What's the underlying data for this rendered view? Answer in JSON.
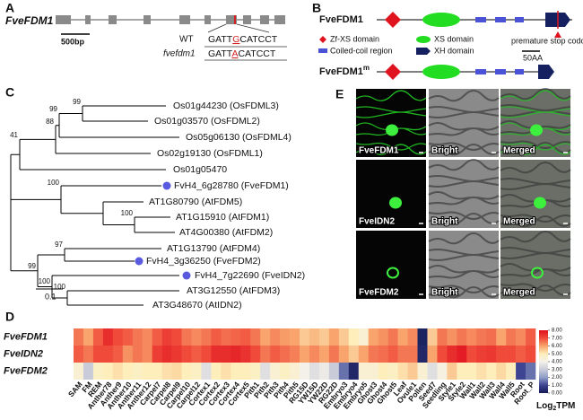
{
  "panel_labels": [
    "A",
    "B",
    "C",
    "D",
    "E"
  ],
  "gene_structure": {
    "gene": "FveFDM1",
    "scale": "500bp",
    "wt": {
      "label": "WT",
      "seq": [
        "GATT",
        "G",
        "CATCCT"
      ]
    },
    "mutant": {
      "label": "fvefdm1",
      "seq": [
        "GATT",
        "A",
        "CATCCT"
      ]
    }
  },
  "protein": {
    "wt": "FveFDM1",
    "mutant": {
      "name": "FveFDM1",
      "sup": "m"
    },
    "legend": [
      "Zf-XS domain",
      "XS domain",
      "Coiled-coil region",
      "XH domain"
    ],
    "stop": "premature stop codon",
    "scale": "50AA"
  },
  "tree": {
    "leaves": [
      "Os01g44230 (OsFDML3)",
      "Os01g03570 (OsFDML2)",
      "Os05g06130 (OsFDML4)",
      "Os02g19130 (OsFDML1)",
      "Os01g05470",
      "FvH4_6g28780 (FveFDM1)",
      "AT1G80790 (AtFDM5)",
      "AT1G15910 (AtFDM1)",
      "AT4G00380 (AtFDM2)",
      "AT1G13790 (AtFDM4)",
      "FvH4_3g36250 (FveFDM2)",
      "FvH4_7g22690 (FveIDN2)",
      "AT3G12550 (AtFDM3)",
      "AT3G48670 (AtIDN2)"
    ],
    "bootstrap": [
      99,
      99,
      88,
      41,
      100,
      100,
      97,
      100,
      100,
      99
    ],
    "scale": "0.1"
  },
  "heatmap": {
    "rows": [
      "FveFDM1",
      "FveIDN2",
      "FveFDM2"
    ],
    "columns": [
      "SAM",
      "FM",
      "REM",
      "Anther78",
      "Anther9",
      "Anther10",
      "Anther11",
      "Anther12",
      "Carpel7",
      "Carpel8",
      "Carpel9",
      "Carpel10",
      "Carpel12",
      "Cortex1",
      "Cortex2",
      "Cortex3",
      "Cortex4",
      "Cortex5",
      "Pith1",
      "Pith2",
      "Pith3",
      "Pith4",
      "Pith5",
      "RG15D",
      "YW15D",
      "YW22D",
      "RG22D",
      "Embryo3",
      "Embryo4",
      "Embryo5",
      "Ghost3",
      "Ghost4",
      "Ghost5",
      "Leaf",
      "Ovule1",
      "Pollen",
      "Seed7",
      "Seedling",
      "Style1",
      "Style2",
      "Wall1",
      "Wall2",
      "Wall3",
      "Wall4",
      "Wall5",
      "Root",
      "Root_P"
    ],
    "values": [
      [
        6.5,
        6.0,
        6.8,
        7.5,
        7.0,
        6.8,
        6.5,
        6.3,
        6.8,
        7.2,
        7.0,
        6.5,
        6.3,
        6.5,
        6.8,
        6.6,
        6.7,
        6.8,
        6.5,
        6.0,
        6.3,
        6.1,
        6.0,
        5.5,
        5.7,
        5.5,
        6.0,
        5.5,
        5.0,
        4.5,
        6.0,
        6.2,
        6.5,
        6.0,
        6.3,
        0.2,
        5.5,
        6.5,
        6.2,
        6.5,
        6.3,
        6.5,
        6.6,
        6.0,
        6.5,
        6.3,
        6.8
      ],
      [
        6.8,
        6.5,
        7.0,
        7.0,
        6.8,
        6.2,
        6.5,
        6.3,
        7.2,
        7.5,
        7.3,
        7.0,
        6.8,
        7.0,
        7.5,
        7.5,
        7.6,
        7.4,
        7.0,
        6.5,
        6.8,
        6.6,
        6.4,
        6.0,
        6.3,
        6.0,
        6.5,
        6.0,
        5.5,
        6.0,
        6.5,
        6.6,
        6.8,
        6.5,
        6.5,
        0.3,
        6.0,
        7.0,
        7.5,
        7.8,
        7.0,
        7.2,
        7.3,
        7.0,
        7.0,
        6.8,
        7.0
      ],
      [
        4.5,
        3.0,
        4.8,
        5.0,
        5.2,
        5.0,
        4.8,
        5.0,
        5.0,
        5.2,
        5.3,
        5.0,
        4.8,
        3.5,
        5.0,
        5.2,
        5.0,
        5.0,
        4.8,
        3.5,
        4.5,
        4.8,
        4.5,
        4.0,
        3.5,
        3.8,
        3.0,
        1.5,
        0.3,
        4.5,
        4.5,
        5.0,
        4.8,
        5.2,
        5.5,
        4.5,
        3.5,
        4.2,
        5.5,
        5.0,
        5.0,
        5.2,
        5.0,
        5.3,
        5.0,
        1.0,
        1.5
      ]
    ],
    "legend_title": {
      "base": "Log",
      "sub": "2",
      "unit": "TPM"
    },
    "legend_ticks": [
      {
        "value": 8,
        "label": "8.00"
      },
      {
        "value": 7,
        "label": "7.00"
      },
      {
        "value": 6,
        "label": "6.00"
      },
      {
        "value": 5,
        "label": "5.00"
      },
      {
        "value": 4,
        "label": "4.00"
      },
      {
        "value": 3,
        "label": "3.00"
      },
      {
        "value": 2,
        "label": "2.00"
      },
      {
        "value": 1,
        "label": "1.00"
      },
      {
        "value": 0,
        "label": "0.00"
      }
    ],
    "colors": [
      "#e01020",
      "#f04a3a",
      "#f8a46c",
      "#fdeebb",
      "#f4f1ea",
      "#c9ccd8",
      "#8f9fc8",
      "#3e4592",
      "#141a55"
    ]
  },
  "micrographs": {
    "rows": [
      "FveFDM1",
      "FveIDN2",
      "FveFDM2"
    ],
    "columns": [
      "Bright",
      "Merged"
    ]
  }
}
